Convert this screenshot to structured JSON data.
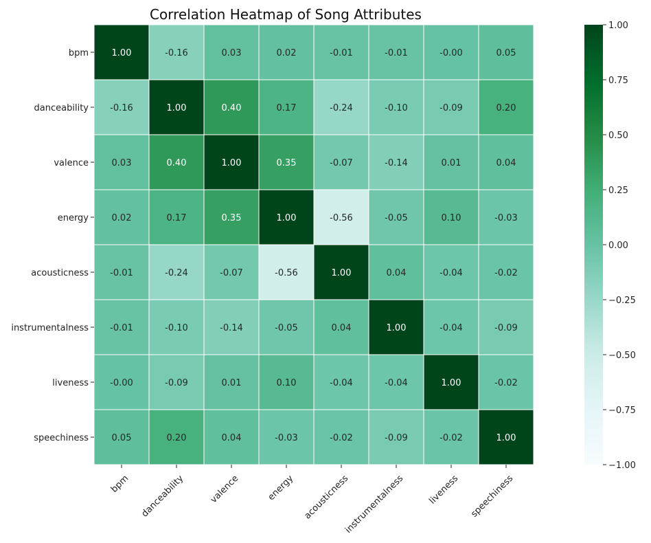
{
  "chart_data": {
    "type": "heatmap",
    "title": "Correlation Heatmap of Song Attributes",
    "xlabel": "",
    "ylabel": "",
    "rows": [
      "bpm",
      "danceability",
      "valence",
      "energy",
      "acousticness",
      "instrumentalness",
      "liveness",
      "speechiness"
    ],
    "columns": [
      "bpm",
      "danceability",
      "valence",
      "energy",
      "acousticness",
      "instrumentalness",
      "liveness",
      "speechiness"
    ],
    "values": [
      [
        1.0,
        -0.16,
        0.03,
        0.02,
        -0.01,
        -0.01,
        -0.0,
        0.05
      ],
      [
        -0.16,
        1.0,
        0.4,
        0.17,
        -0.24,
        -0.1,
        -0.09,
        0.2
      ],
      [
        0.03,
        0.4,
        1.0,
        0.35,
        -0.07,
        -0.14,
        0.01,
        0.04
      ],
      [
        0.02,
        0.17,
        0.35,
        1.0,
        -0.56,
        -0.05,
        0.1,
        -0.03
      ],
      [
        -0.01,
        -0.24,
        -0.07,
        -0.56,
        1.0,
        0.04,
        -0.04,
        -0.02
      ],
      [
        -0.01,
        -0.1,
        -0.14,
        -0.05,
        0.04,
        1.0,
        -0.04,
        -0.09
      ],
      [
        -0.0,
        -0.09,
        0.01,
        0.1,
        -0.04,
        -0.04,
        1.0,
        -0.02
      ],
      [
        0.05,
        0.2,
        0.04,
        -0.03,
        -0.02,
        -0.09,
        -0.02,
        1.0
      ]
    ],
    "cell_labels": [
      [
        "1.00",
        "-0.16",
        "0.03",
        "0.02",
        "-0.01",
        "-0.01",
        "-0.00",
        "0.05"
      ],
      [
        "-0.16",
        "1.00",
        "0.40",
        "0.17",
        "-0.24",
        "-0.10",
        "-0.09",
        "0.20"
      ],
      [
        "0.03",
        "0.40",
        "1.00",
        "0.35",
        "-0.07",
        "-0.14",
        "0.01",
        "0.04"
      ],
      [
        "0.02",
        "0.17",
        "0.35",
        "1.00",
        "-0.56",
        "-0.05",
        "0.10",
        "-0.03"
      ],
      [
        "-0.01",
        "-0.24",
        "-0.07",
        "-0.56",
        "1.00",
        "0.04",
        "-0.04",
        "-0.02"
      ],
      [
        "-0.01",
        "-0.10",
        "-0.14",
        "-0.05",
        "0.04",
        "1.00",
        "-0.04",
        "-0.09"
      ],
      [
        "-0.00",
        "-0.09",
        "0.01",
        "0.10",
        "-0.04",
        "-0.04",
        "1.00",
        "-0.02"
      ],
      [
        "0.05",
        "0.20",
        "0.04",
        "-0.03",
        "-0.02",
        "-0.09",
        "-0.02",
        "1.00"
      ]
    ],
    "colormap": "BuGn",
    "vmin": -1.0,
    "vmax": 1.0,
    "colorbar_ticks": [
      1.0,
      0.75,
      0.5,
      0.25,
      0.0,
      -0.25,
      -0.5,
      -0.75,
      -1.0
    ],
    "colorbar_tick_labels": [
      "1.00",
      "0.75",
      "0.50",
      "0.25",
      "0.00",
      "−0.25",
      "−0.50",
      "−0.75",
      "−1.00"
    ],
    "colors": {
      "colormap_stops": [
        "#f7fcfd",
        "#e5f5f9",
        "#ccece6",
        "#99d8c9",
        "#66c2a4",
        "#41ae76",
        "#238b45",
        "#006d2c",
        "#00441b"
      ],
      "cell_border": "#ffffff",
      "text_dark": "#262626",
      "text_light": "#ffffff"
    }
  }
}
